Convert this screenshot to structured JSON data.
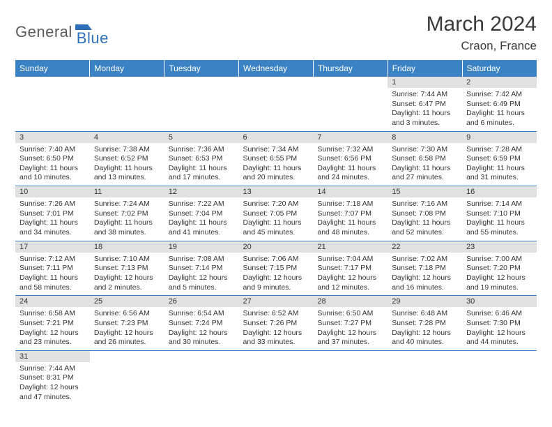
{
  "logo": {
    "word_a": "General",
    "word_b": "Blue",
    "shape_color": "#2d6fb8"
  },
  "title": "March 2024",
  "location": "Craon, France",
  "colors": {
    "header_bg": "#3a82c4",
    "header_text": "#ffffff",
    "daynum_bg": "#e1e1e1",
    "row_divider": "#3a82c4",
    "text": "#333333"
  },
  "weekdays": [
    "Sunday",
    "Monday",
    "Tuesday",
    "Wednesday",
    "Thursday",
    "Friday",
    "Saturday"
  ],
  "weeks": [
    [
      null,
      null,
      null,
      null,
      null,
      {
        "n": "1",
        "sr": "7:44 AM",
        "ss": "6:47 PM",
        "dl": "11 hours and 3 minutes."
      },
      {
        "n": "2",
        "sr": "7:42 AM",
        "ss": "6:49 PM",
        "dl": "11 hours and 6 minutes."
      }
    ],
    [
      {
        "n": "3",
        "sr": "7:40 AM",
        "ss": "6:50 PM",
        "dl": "11 hours and 10 minutes."
      },
      {
        "n": "4",
        "sr": "7:38 AM",
        "ss": "6:52 PM",
        "dl": "11 hours and 13 minutes."
      },
      {
        "n": "5",
        "sr": "7:36 AM",
        "ss": "6:53 PM",
        "dl": "11 hours and 17 minutes."
      },
      {
        "n": "6",
        "sr": "7:34 AM",
        "ss": "6:55 PM",
        "dl": "11 hours and 20 minutes."
      },
      {
        "n": "7",
        "sr": "7:32 AM",
        "ss": "6:56 PM",
        "dl": "11 hours and 24 minutes."
      },
      {
        "n": "8",
        "sr": "7:30 AM",
        "ss": "6:58 PM",
        "dl": "11 hours and 27 minutes."
      },
      {
        "n": "9",
        "sr": "7:28 AM",
        "ss": "6:59 PM",
        "dl": "11 hours and 31 minutes."
      }
    ],
    [
      {
        "n": "10",
        "sr": "7:26 AM",
        "ss": "7:01 PM",
        "dl": "11 hours and 34 minutes."
      },
      {
        "n": "11",
        "sr": "7:24 AM",
        "ss": "7:02 PM",
        "dl": "11 hours and 38 minutes."
      },
      {
        "n": "12",
        "sr": "7:22 AM",
        "ss": "7:04 PM",
        "dl": "11 hours and 41 minutes."
      },
      {
        "n": "13",
        "sr": "7:20 AM",
        "ss": "7:05 PM",
        "dl": "11 hours and 45 minutes."
      },
      {
        "n": "14",
        "sr": "7:18 AM",
        "ss": "7:07 PM",
        "dl": "11 hours and 48 minutes."
      },
      {
        "n": "15",
        "sr": "7:16 AM",
        "ss": "7:08 PM",
        "dl": "11 hours and 52 minutes."
      },
      {
        "n": "16",
        "sr": "7:14 AM",
        "ss": "7:10 PM",
        "dl": "11 hours and 55 minutes."
      }
    ],
    [
      {
        "n": "17",
        "sr": "7:12 AM",
        "ss": "7:11 PM",
        "dl": "11 hours and 58 minutes."
      },
      {
        "n": "18",
        "sr": "7:10 AM",
        "ss": "7:13 PM",
        "dl": "12 hours and 2 minutes."
      },
      {
        "n": "19",
        "sr": "7:08 AM",
        "ss": "7:14 PM",
        "dl": "12 hours and 5 minutes."
      },
      {
        "n": "20",
        "sr": "7:06 AM",
        "ss": "7:15 PM",
        "dl": "12 hours and 9 minutes."
      },
      {
        "n": "21",
        "sr": "7:04 AM",
        "ss": "7:17 PM",
        "dl": "12 hours and 12 minutes."
      },
      {
        "n": "22",
        "sr": "7:02 AM",
        "ss": "7:18 PM",
        "dl": "12 hours and 16 minutes."
      },
      {
        "n": "23",
        "sr": "7:00 AM",
        "ss": "7:20 PM",
        "dl": "12 hours and 19 minutes."
      }
    ],
    [
      {
        "n": "24",
        "sr": "6:58 AM",
        "ss": "7:21 PM",
        "dl": "12 hours and 23 minutes."
      },
      {
        "n": "25",
        "sr": "6:56 AM",
        "ss": "7:23 PM",
        "dl": "12 hours and 26 minutes."
      },
      {
        "n": "26",
        "sr": "6:54 AM",
        "ss": "7:24 PM",
        "dl": "12 hours and 30 minutes."
      },
      {
        "n": "27",
        "sr": "6:52 AM",
        "ss": "7:26 PM",
        "dl": "12 hours and 33 minutes."
      },
      {
        "n": "28",
        "sr": "6:50 AM",
        "ss": "7:27 PM",
        "dl": "12 hours and 37 minutes."
      },
      {
        "n": "29",
        "sr": "6:48 AM",
        "ss": "7:28 PM",
        "dl": "12 hours and 40 minutes."
      },
      {
        "n": "30",
        "sr": "6:46 AM",
        "ss": "7:30 PM",
        "dl": "12 hours and 44 minutes."
      }
    ],
    [
      {
        "n": "31",
        "sr": "7:44 AM",
        "ss": "8:31 PM",
        "dl": "12 hours and 47 minutes."
      },
      null,
      null,
      null,
      null,
      null,
      null
    ]
  ],
  "labels": {
    "sunrise": "Sunrise:",
    "sunset": "Sunset:",
    "daylight": "Daylight:"
  }
}
